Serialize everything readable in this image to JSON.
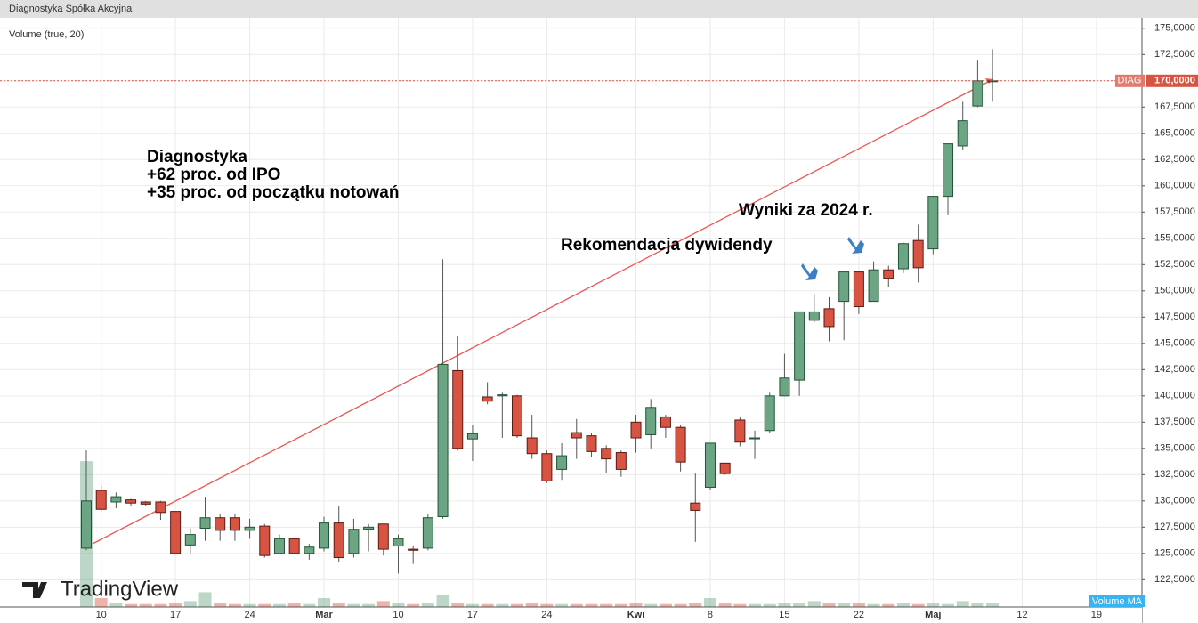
{
  "header": {
    "title": "Diagnostyka Spółka Akcyjna"
  },
  "chart_data": {
    "type": "candlestick",
    "indicator_label": "Volume (true, 20)",
    "volume_ma_label": "Volume MA",
    "watermark": "TradingView",
    "symbol": "DIAG",
    "last_price": 170,
    "last_price_label": "170,0000",
    "annotations": [
      {
        "text": [
          "Diagnostyka",
          "+62 proc. od IPO",
          "+35 proc. od początku notowań"
        ]
      },
      {
        "text": [
          "Wyniki za 2024 r."
        ]
      },
      {
        "text": [
          "Rekomendacja dywidendy"
        ]
      }
    ],
    "up_color": "#6ba583",
    "down_color": "#d75442",
    "categories": [
      null,
      "10",
      null,
      null,
      null,
      null,
      "17",
      null,
      null,
      null,
      null,
      "24",
      null,
      null,
      null,
      null,
      "Mar",
      null,
      null,
      null,
      null,
      "10",
      null,
      null,
      null,
      null,
      "17",
      null,
      null,
      null,
      null,
      "24",
      null,
      null,
      null,
      null,
      null,
      "Kwi",
      null,
      null,
      null,
      null,
      "8",
      null,
      null,
      null,
      null,
      "15",
      null,
      null,
      null,
      null,
      "22",
      null,
      null,
      null,
      null,
      "Maj",
      null,
      null,
      null,
      null,
      null,
      "12",
      null,
      null,
      null,
      null,
      "19"
    ],
    "open": [
      125.5,
      131,
      129.9,
      130.1,
      129.9,
      129.9,
      129,
      125.8,
      127.4,
      128.4,
      128.4,
      127.2,
      127.6,
      125,
      126.4,
      125,
      125.5,
      127.9,
      125,
      127.3,
      127.8,
      125.7,
      125.4,
      125.5,
      128.5,
      142.4,
      135.9,
      139.9,
      140,
      140,
      136,
      134.5,
      133,
      136.5,
      136.2,
      135,
      134.6,
      137.5,
      136.3,
      138,
      137,
      129.8,
      131.3,
      133.6,
      137.7,
      136,
      136.7,
      140,
      141.5,
      147.2,
      148.3,
      149,
      151.8,
      149,
      152,
      152.1,
      154.8,
      154,
      159,
      163.8,
      167.6,
      170,
      null,
      null,
      null,
      null,
      null,
      null,
      null
    ],
    "high": [
      134.8,
      131.5,
      130.8,
      130.2,
      130,
      130,
      129,
      127.4,
      130.4,
      128.8,
      128.8,
      128.3,
      127.8,
      126.8,
      126.4,
      125.9,
      128.5,
      129.5,
      128.3,
      127.8,
      127.8,
      126.8,
      125.7,
      128.8,
      153,
      145.7,
      137.2,
      141.3,
      140.3,
      140.1,
      138.2,
      134.8,
      135.5,
      137.8,
      136.5,
      135.3,
      134.8,
      138.2,
      139.7,
      138.2,
      137.2,
      132.6,
      135.5,
      133.6,
      138,
      136.7,
      140.3,
      144,
      148,
      149.7,
      149.4,
      151.8,
      151.8,
      152.8,
      152.4,
      154.6,
      156.3,
      159,
      164,
      168,
      172,
      173,
      null,
      null,
      null,
      null,
      null,
      null,
      null
    ],
    "low": [
      125.3,
      129,
      129.3,
      129.5,
      129.5,
      128.2,
      125,
      125,
      126.2,
      126.2,
      126.2,
      126.4,
      124.6,
      125,
      125,
      124.4,
      125.2,
      124.2,
      124.6,
      125.2,
      124.8,
      123.1,
      124,
      125.3,
      128.3,
      134.8,
      133.8,
      139.2,
      136,
      136,
      134,
      131.7,
      132,
      134,
      134.2,
      132.7,
      132.3,
      134.6,
      135,
      136,
      132.8,
      126.1,
      131,
      132.5,
      135.2,
      134,
      136.5,
      140,
      140,
      147,
      145.2,
      145.3,
      147.8,
      149,
      150.4,
      151.7,
      150.8,
      153.5,
      157.2,
      163.4,
      167.5,
      168,
      null,
      null,
      null,
      null,
      null,
      null,
      null
    ],
    "close": [
      130,
      129.2,
      130.4,
      129.8,
      129.7,
      128.9,
      125,
      126.8,
      128.4,
      127.2,
      127.2,
      127.5,
      124.8,
      126.4,
      125,
      125.6,
      127.9,
      124.6,
      127.3,
      127.5,
      125.4,
      126.4,
      125.3,
      128.4,
      143,
      135,
      136.4,
      139.5,
      140.1,
      136.2,
      134.5,
      131.9,
      134.3,
      136,
      134.7,
      134,
      133,
      136,
      138.9,
      137,
      133.7,
      129.1,
      135.5,
      132.6,
      135.6,
      136,
      140,
      141.7,
      148,
      148,
      146.6,
      151.8,
      148.5,
      152,
      151.2,
      154.5,
      152.2,
      159,
      164,
      166.2,
      170,
      170,
      null,
      null,
      null,
      null,
      null,
      null,
      null
    ],
    "volume": [
      99,
      6,
      3,
      2,
      2,
      2,
      3,
      4,
      10,
      3,
      2,
      2,
      2,
      2,
      3,
      2,
      6,
      3,
      2,
      2,
      4,
      3,
      2,
      3,
      8,
      3,
      2,
      2,
      2,
      2,
      3,
      2,
      2,
      2,
      2,
      2,
      2,
      3,
      2,
      2,
      2,
      3,
      6,
      3,
      2,
      2,
      2,
      3,
      3,
      4,
      3,
      3,
      3,
      2,
      2,
      3,
      2,
      3,
      2,
      4,
      3,
      3,
      null,
      null,
      null,
      null,
      null,
      null,
      null
    ],
    "volume_ylim": [
      0,
      400
    ],
    "ylim": [
      119.9,
      176
    ],
    "yticks": [
      {
        "value": 122.5,
        "label": "122,5000"
      },
      {
        "value": 125,
        "label": "125,0000"
      },
      {
        "value": 127.5,
        "label": "127,5000"
      },
      {
        "value": 130,
        "label": "130,0000"
      },
      {
        "value": 132.5,
        "label": "132,5000"
      },
      {
        "value": 135,
        "label": "135,0000"
      },
      {
        "value": 137.5,
        "label": "137,5000"
      },
      {
        "value": 140,
        "label": "140,0000"
      },
      {
        "value": 142.5,
        "label": "142,5000"
      },
      {
        "value": 145,
        "label": "145,0000"
      },
      {
        "value": 147.5,
        "label": "147,5000"
      },
      {
        "value": 150,
        "label": "150,0000"
      },
      {
        "value": 152.5,
        "label": "152,5000"
      },
      {
        "value": 155,
        "label": "155,0000"
      },
      {
        "value": 157.5,
        "label": "157,5000"
      },
      {
        "value": 160,
        "label": "160,0000"
      },
      {
        "value": 162.5,
        "label": "162,5000"
      },
      {
        "value": 165,
        "label": "165,0000"
      },
      {
        "value": 167.5,
        "label": "167,5000"
      },
      {
        "value": 170,
        "label": "170,0000"
      },
      {
        "value": 172.5,
        "label": "172,5000"
      },
      {
        "value": 175,
        "label": "175,0000"
      }
    ],
    "grid": true
  }
}
